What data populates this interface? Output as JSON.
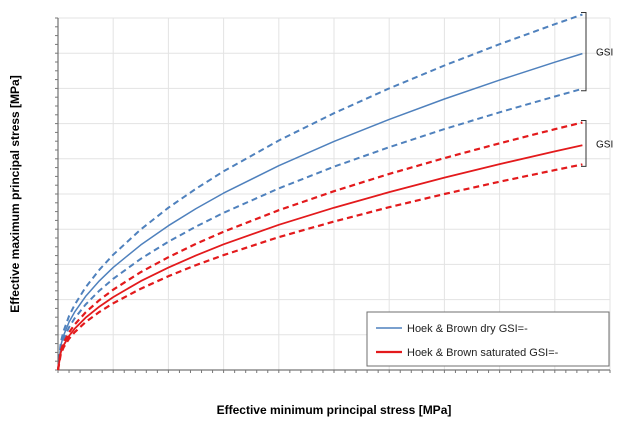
{
  "chart_data": {
    "type": "line",
    "title": "",
    "xlabel": "Effective minimum principal stress [MPa]",
    "ylabel": "Effective maximum principal stress [MPa]",
    "xlim": [
      0,
      10
    ],
    "ylim": [
      0,
      20
    ],
    "grid": true,
    "legend_position": "bottom-right",
    "legend": [
      {
        "label": "Hoek & Brown dry GSI=-",
        "color": "#4f81bd"
      },
      {
        "label": "Hoek & Brown saturated GSI=-",
        "color": "#e31a1c"
      }
    ],
    "annotations": [
      {
        "text": "GSI",
        "target": "dry"
      },
      {
        "text": "GSI",
        "target": "saturated"
      }
    ],
    "x": [
      0,
      0.05,
      0.1,
      0.2,
      0.3,
      0.5,
      0.75,
      1,
      1.5,
      2,
      2.5,
      3,
      4,
      5,
      6,
      7,
      8,
      9,
      9.5
    ],
    "series": [
      {
        "group": "dry",
        "style": "dashed",
        "color": "#4f81bd",
        "values": [
          0,
          1.58,
          2.2,
          3.06,
          3.7,
          4.7,
          5.7,
          6.55,
          7.99,
          9.22,
          10.3,
          11.29,
          13.04,
          14.59,
          16.0,
          17.3,
          18.51,
          19.65,
          20.2
        ]
      },
      {
        "group": "dry",
        "style": "solid",
        "color": "#4f81bd",
        "values": [
          0,
          1.4,
          1.95,
          2.72,
          3.29,
          4.18,
          5.07,
          5.83,
          7.11,
          8.2,
          9.17,
          10.05,
          11.61,
          12.99,
          14.24,
          15.4,
          16.47,
          17.49,
          17.98
        ]
      },
      {
        "group": "dry",
        "style": "dashed",
        "color": "#4f81bd",
        "values": [
          0,
          1.25,
          1.74,
          2.42,
          2.93,
          3.72,
          4.51,
          5.18,
          6.32,
          7.29,
          8.15,
          8.93,
          10.32,
          11.55,
          12.66,
          13.69,
          14.64,
          15.54,
          15.98
        ]
      },
      {
        "group": "saturated",
        "style": "dashed",
        "color": "#e31a1c",
        "values": [
          0,
          1.1,
          1.53,
          2.13,
          2.58,
          3.27,
          3.97,
          4.56,
          5.56,
          6.41,
          7.17,
          7.86,
          9.08,
          10.16,
          11.14,
          12.04,
          12.88,
          13.68,
          14.06
        ]
      },
      {
        "group": "saturated",
        "style": "solid",
        "color": "#e31a1c",
        "values": [
          0,
          1.0,
          1.39,
          1.93,
          2.34,
          2.97,
          3.6,
          4.14,
          5.05,
          5.82,
          6.51,
          7.14,
          8.25,
          9.22,
          10.11,
          10.93,
          11.7,
          12.42,
          12.77
        ]
      },
      {
        "group": "saturated",
        "style": "dashed",
        "color": "#e31a1c",
        "values": [
          0,
          0.91,
          1.27,
          1.77,
          2.14,
          2.72,
          3.3,
          3.79,
          4.62,
          5.33,
          5.96,
          6.53,
          7.55,
          8.44,
          9.25,
          10.0,
          10.7,
          11.36,
          11.68
        ]
      }
    ]
  }
}
